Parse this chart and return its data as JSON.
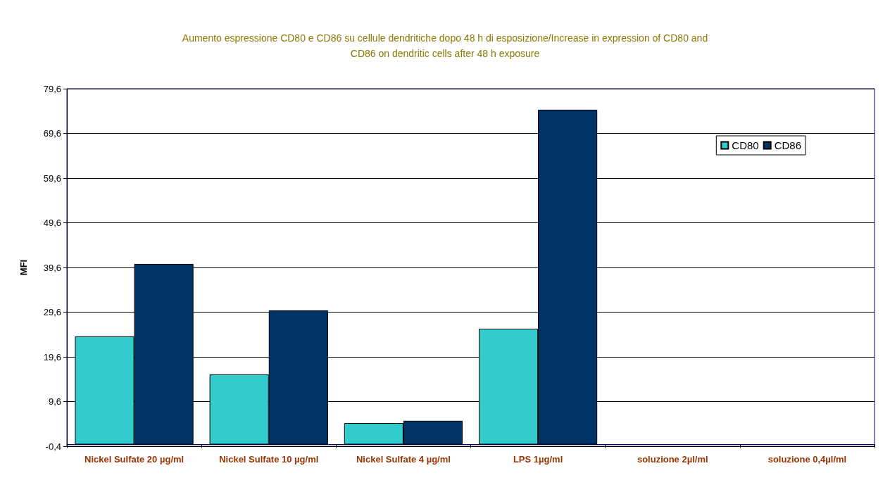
{
  "chart_data": {
    "type": "bar",
    "title": "Aumento espressione CD80 e CD86 su cellule dendritiche dopo 48 h di esposizione/Increase in expression of CD80 and\nCD86 on dendritic cells after 48 h exposure",
    "ylabel": "MFI",
    "categories": [
      "Nickel Sulfate 20 µg/ml",
      "Nickel Sulfate 10 µg/ml",
      "Nickel Sulfate 4 µg/ml",
      "LPS 1µg/ml",
      "soluzione 2µl/ml",
      "soluzione 0,4µl/ml"
    ],
    "series": [
      {
        "name": "CD80",
        "color": "#33cccc",
        "values": [
          24.2,
          15.7,
          4.8,
          25.9,
          0,
          0
        ]
      },
      {
        "name": "CD86",
        "color": "#003366",
        "values": [
          40.4,
          30.0,
          5.3,
          74.9,
          0,
          0
        ]
      }
    ],
    "ylim": [
      -0.4,
      79.6
    ],
    "yticks": [
      {
        "value": -0.4,
        "label": "-0,4"
      },
      {
        "value": 9.6,
        "label": "9,6"
      },
      {
        "value": 19.6,
        "label": "19,6"
      },
      {
        "value": 29.6,
        "label": "29,6"
      },
      {
        "value": 39.6,
        "label": "39,6"
      },
      {
        "value": 49.6,
        "label": "49,6"
      },
      {
        "value": 59.6,
        "label": "59,6"
      },
      {
        "value": 69.6,
        "label": "69,6"
      },
      {
        "value": 79.6,
        "label": "79,6"
      }
    ],
    "grid": "y",
    "legend": "top right"
  }
}
